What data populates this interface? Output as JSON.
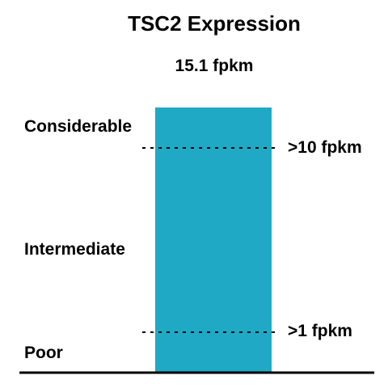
{
  "chart_data": {
    "type": "bar",
    "title": "TSC2 Expression",
    "subtitle": "15.1 fpkm",
    "categories": [
      "TSC2"
    ],
    "values": [
      15.1
    ],
    "unit": "fpkm",
    "category_labels": [
      "Considerable",
      "Intermediate",
      "Poor"
    ],
    "reference_lines": [
      {
        "value": 10,
        "label": ">10 fpkm"
      },
      {
        "value": 1,
        "label": ">1 fpkm"
      }
    ],
    "grid": false,
    "legend": "none"
  },
  "colors": {
    "bar": "#1fa9c5",
    "text": "#000000",
    "axis": "#000000"
  }
}
